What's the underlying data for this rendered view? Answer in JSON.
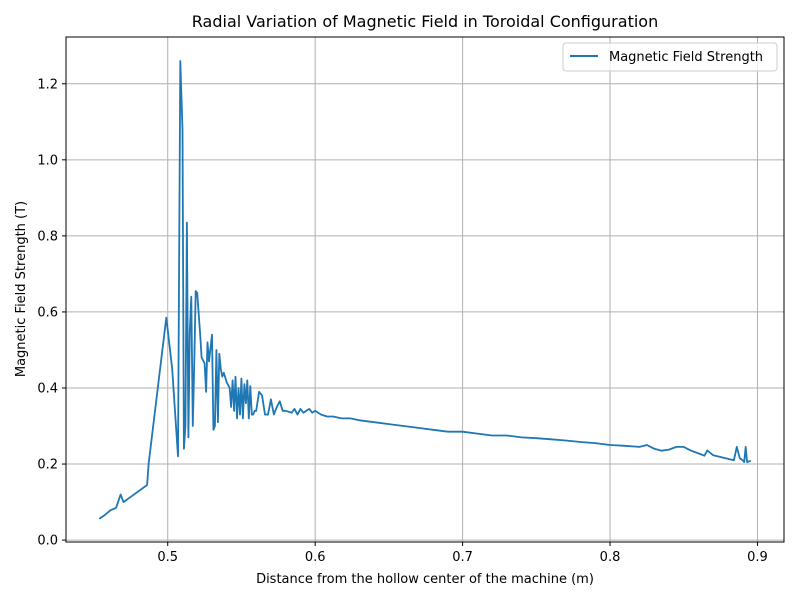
{
  "chart_data": {
    "type": "line",
    "title": "Radial Variation of Magnetic Field in Toroidal Configuration",
    "xlabel": "Distance from the hollow center of the machine (m)",
    "ylabel": "Magnetic Field Strength (T)",
    "xlim": [
      0.431,
      0.918
    ],
    "ylim": [
      -0.005,
      1.323
    ],
    "xticks": [
      0.5,
      0.6,
      0.7,
      0.8,
      0.9
    ],
    "xtick_labels": [
      "0.5",
      "0.6",
      "0.7",
      "0.8",
      "0.9"
    ],
    "yticks": [
      0.0,
      0.2,
      0.4,
      0.6,
      0.8,
      1.0,
      1.2
    ],
    "ytick_labels": [
      "0.0",
      "0.2",
      "0.4",
      "0.6",
      "0.8",
      "1.0",
      "1.2"
    ],
    "grid": true,
    "legend_position": "top-right",
    "series": [
      {
        "name": "Magnetic Field Strength",
        "color": "#1f77b4",
        "x": [
          0.454,
          0.457,
          0.461,
          0.465,
          0.468,
          0.47,
          0.486,
          0.487,
          0.499,
          0.503,
          0.507,
          0.5085,
          0.51,
          0.511,
          0.512,
          0.513,
          0.514,
          0.515,
          0.516,
          0.517,
          0.518,
          0.519,
          0.52,
          0.522,
          0.523,
          0.525,
          0.526,
          0.527,
          0.528,
          0.529,
          0.53,
          0.531,
          0.532,
          0.533,
          0.534,
          0.535,
          0.536,
          0.537,
          0.538,
          0.54,
          0.542,
          0.543,
          0.544,
          0.545,
          0.546,
          0.547,
          0.548,
          0.549,
          0.55,
          0.551,
          0.552,
          0.553,
          0.554,
          0.555,
          0.556,
          0.557,
          0.558,
          0.559,
          0.56,
          0.562,
          0.564,
          0.566,
          0.568,
          0.57,
          0.572,
          0.574,
          0.576,
          0.578,
          0.58,
          0.584,
          0.586,
          0.588,
          0.59,
          0.592,
          0.594,
          0.596,
          0.598,
          0.6,
          0.604,
          0.608,
          0.612,
          0.618,
          0.624,
          0.63,
          0.64,
          0.65,
          0.66,
          0.67,
          0.68,
          0.69,
          0.7,
          0.71,
          0.72,
          0.73,
          0.74,
          0.75,
          0.76,
          0.77,
          0.78,
          0.79,
          0.8,
          0.81,
          0.82,
          0.825,
          0.83,
          0.835,
          0.84,
          0.845,
          0.85,
          0.855,
          0.86,
          0.864,
          0.866,
          0.87,
          0.884,
          0.886,
          0.888,
          0.89,
          0.891,
          0.892,
          0.893,
          0.895
        ],
        "y": [
          0.057,
          0.065,
          0.078,
          0.085,
          0.12,
          0.1,
          0.145,
          0.2,
          0.585,
          0.45,
          0.22,
          1.26,
          1.08,
          0.24,
          0.3,
          0.835,
          0.27,
          0.55,
          0.64,
          0.3,
          0.47,
          0.655,
          0.65,
          0.54,
          0.48,
          0.465,
          0.39,
          0.52,
          0.47,
          0.505,
          0.54,
          0.29,
          0.3,
          0.5,
          0.31,
          0.49,
          0.45,
          0.43,
          0.44,
          0.415,
          0.4,
          0.35,
          0.42,
          0.34,
          0.43,
          0.32,
          0.4,
          0.33,
          0.425,
          0.32,
          0.41,
          0.36,
          0.42,
          0.32,
          0.405,
          0.33,
          0.33,
          0.34,
          0.34,
          0.39,
          0.38,
          0.33,
          0.33,
          0.37,
          0.33,
          0.35,
          0.365,
          0.34,
          0.34,
          0.335,
          0.345,
          0.33,
          0.345,
          0.335,
          0.34,
          0.345,
          0.335,
          0.34,
          0.33,
          0.325,
          0.325,
          0.32,
          0.32,
          0.315,
          0.31,
          0.305,
          0.3,
          0.295,
          0.29,
          0.285,
          0.285,
          0.28,
          0.275,
          0.275,
          0.27,
          0.268,
          0.265,
          0.262,
          0.258,
          0.255,
          0.25,
          0.248,
          0.245,
          0.25,
          0.24,
          0.235,
          0.238,
          0.245,
          0.245,
          0.235,
          0.228,
          0.222,
          0.236,
          0.223,
          0.21,
          0.245,
          0.215,
          0.21,
          0.205,
          0.245,
          0.205,
          0.208
        ]
      }
    ]
  }
}
